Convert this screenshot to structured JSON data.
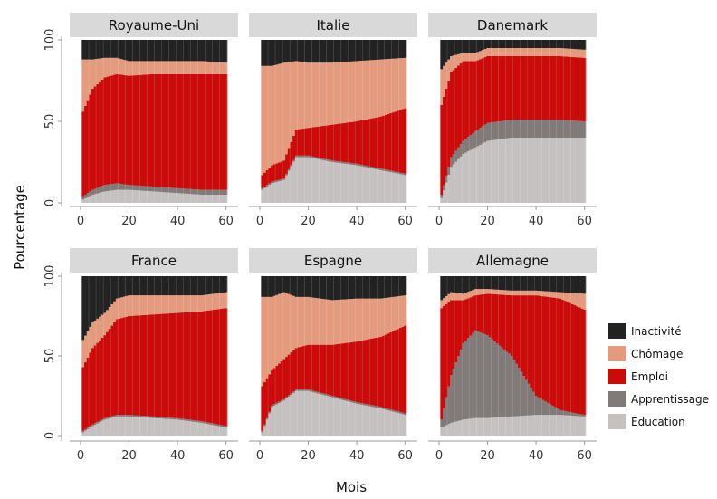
{
  "chart_data": {
    "type": "area",
    "subtype": "stacked-area-faceted",
    "xlabel": "Mois",
    "ylabel": "Pourcentage",
    "xlim": [
      0,
      62
    ],
    "ylim": [
      0,
      100
    ],
    "x_ticks": [
      0,
      20,
      40,
      60
    ],
    "y_ticks": [
      0,
      50,
      100
    ],
    "grid": false,
    "legend_position": "right",
    "legend": [
      {
        "name": "Inactivité",
        "color": "#222222"
      },
      {
        "name": "Chômage",
        "color": "#e49a7c"
      },
      {
        "name": "Emploi",
        "color": "#cc0a0a"
      },
      {
        "name": "Apprentissage",
        "color": "#807a78"
      },
      {
        "name": "Education",
        "color": "#c4c1c0"
      }
    ],
    "x": [
      1,
      5,
      10,
      15,
      20,
      30,
      40,
      50,
      60
    ],
    "panels": [
      {
        "title": "Royaume-Uni",
        "series": {
          "Education": [
            2,
            5,
            7,
            8,
            8,
            7,
            6,
            5,
            5
          ],
          "Apprentissage": [
            2,
            3,
            4,
            4,
            3,
            3,
            3,
            3,
            3
          ],
          "Emploi": [
            52,
            62,
            66,
            67,
            67,
            69,
            70,
            71,
            71
          ],
          "Chômage": [
            32,
            18,
            12,
            10,
            9,
            8,
            8,
            8,
            7
          ],
          "Inactivité": [
            12,
            12,
            11,
            11,
            13,
            13,
            13,
            13,
            14
          ]
        }
      },
      {
        "title": "Italie",
        "series": {
          "Education": [
            8,
            12,
            14,
            28,
            28,
            25,
            23,
            20,
            17
          ],
          "Apprentissage": [
            1,
            1,
            1,
            1,
            1,
            1,
            1,
            1,
            1
          ],
          "Emploi": [
            8,
            10,
            11,
            16,
            17,
            22,
            26,
            32,
            40
          ],
          "Chômage": [
            67,
            61,
            60,
            42,
            40,
            38,
            37,
            35,
            31
          ],
          "Inactivité": [
            16,
            16,
            14,
            13,
            14,
            14,
            13,
            12,
            11
          ]
        }
      },
      {
        "title": "Danemark",
        "series": {
          "Education": [
            3,
            22,
            30,
            34,
            38,
            40,
            40,
            40,
            40
          ],
          "Apprentissage": [
            2,
            6,
            8,
            10,
            11,
            11,
            11,
            11,
            10
          ],
          "Emploi": [
            55,
            52,
            49,
            43,
            41,
            39,
            39,
            39,
            39
          ],
          "Chômage": [
            22,
            10,
            5,
            5,
            5,
            5,
            5,
            5,
            5
          ],
          "Inactivité": [
            18,
            10,
            8,
            8,
            5,
            5,
            5,
            5,
            6
          ]
        }
      },
      {
        "title": "France",
        "series": {
          "Education": [
            2,
            6,
            10,
            12,
            12,
            11,
            10,
            8,
            5
          ],
          "Apprentissage": [
            1,
            1,
            1,
            1,
            1,
            1,
            1,
            1,
            1
          ],
          "Emploi": [
            40,
            48,
            52,
            60,
            62,
            64,
            66,
            69,
            74
          ],
          "Chômage": [
            17,
            16,
            14,
            13,
            13,
            12,
            11,
            10,
            10
          ],
          "Inactivité": [
            40,
            29,
            23,
            14,
            12,
            12,
            12,
            12,
            10
          ]
        }
      },
      {
        "title": "Espagne",
        "series": {
          "Education": [
            2,
            18,
            22,
            28,
            28,
            24,
            20,
            17,
            13
          ],
          "Apprentissage": [
            1,
            1,
            1,
            1,
            1,
            1,
            1,
            1,
            1
          ],
          "Emploi": [
            28,
            22,
            25,
            26,
            28,
            32,
            38,
            44,
            55
          ],
          "Chômage": [
            56,
            46,
            42,
            32,
            30,
            28,
            27,
            24,
            19
          ],
          "Inactivité": [
            13,
            13,
            10,
            13,
            13,
            15,
            14,
            14,
            12
          ]
        }
      },
      {
        "title": "Allemagne",
        "series": {
          "Education": [
            5,
            8,
            10,
            11,
            11,
            12,
            13,
            13,
            12
          ],
          "Apprentissage": [
            5,
            30,
            48,
            55,
            52,
            38,
            12,
            3,
            1
          ],
          "Emploi": [
            70,
            47,
            27,
            22,
            26,
            38,
            63,
            70,
            66
          ],
          "Chômage": [
            5,
            5,
            4,
            4,
            3,
            3,
            3,
            4,
            10
          ],
          "Inactivité": [
            15,
            10,
            11,
            8,
            8,
            9,
            9,
            10,
            11
          ]
        }
      }
    ]
  }
}
